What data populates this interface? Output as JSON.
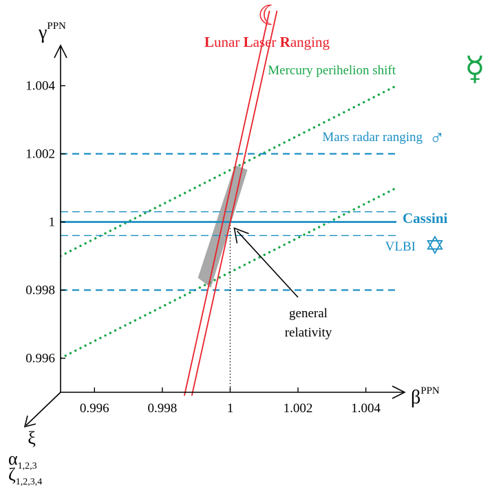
{
  "chart_data": {
    "type": "line",
    "title": "",
    "xlabel": "β",
    "xlabel_sup": "PPN",
    "ylabel": "γ",
    "ylabel_sup": "PPN",
    "zlabel_lines": [
      {
        "base": "ξ",
        "sub": ""
      },
      {
        "base": "α",
        "sub": "1,2,3"
      },
      {
        "base": "ζ",
        "sub": "1,2,3,4"
      }
    ],
    "xlim": [
      0.995,
      1.0049
    ],
    "ylim": [
      0.995,
      1.0049
    ],
    "x_ticks": [
      0.996,
      0.998,
      1,
      1.002,
      1.004
    ],
    "x_tick_labels": [
      "0.996",
      "0.998",
      "1",
      "1.002",
      "1.004"
    ],
    "y_ticks": [
      0.996,
      0.998,
      1,
      1.002,
      1.004
    ],
    "y_tick_labels": [
      "0.996",
      "0.998",
      "1",
      "1.002",
      "1.004"
    ],
    "grid": false,
    "colors": {
      "llr": "#e8202a",
      "mercury": "#1aa64a",
      "radar": "#1b8fc3",
      "gr_region": "#9a9a9a",
      "axes": "#000000"
    },
    "constraints": [
      {
        "label_parts": [
          {
            "text": "L",
            "bold": true
          },
          {
            "text": "unar ",
            "bold": false
          },
          {
            "text": "L",
            "bold": true
          },
          {
            "text": "aser ",
            "bold": false
          },
          {
            "text": "R",
            "bold": true
          },
          {
            "text": "anging",
            "bold": false
          }
        ],
        "style": "solid-double",
        "color_key": "llr",
        "symbol": "☾",
        "lines": [
          {
            "x": [
              0.99865,
              1.00116
            ],
            "y": [
              0.9949,
              1.0062
            ]
          },
          {
            "x": [
              0.99887,
              1.00138
            ],
            "y": [
              0.9949,
              1.0062
            ]
          }
        ]
      },
      {
        "label": "Mercury perihelion shift",
        "style": "dotted",
        "color_key": "mercury",
        "symbol": "☿",
        "lines": [
          {
            "x": [
              0.995,
              1.0049
            ],
            "y": [
              0.999,
              1.004
            ]
          },
          {
            "x": [
              0.995,
              1.0049
            ],
            "y": [
              0.996,
              1.001
            ]
          }
        ]
      },
      {
        "label": "Mars radar ranging",
        "style": "dashed",
        "color_key": "radar",
        "symbol": "♂",
        "lines": [
          {
            "x": [
              0.995,
              1.0049
            ],
            "y": [
              1.002,
              1.002
            ]
          },
          {
            "x": [
              0.995,
              1.0049
            ],
            "y": [
              0.998,
              0.998
            ]
          }
        ]
      },
      {
        "label": "Cassini",
        "bold": true,
        "style": "solid",
        "color_key": "radar",
        "symbol": "",
        "lines": [
          {
            "x": [
              0.995,
              1.0049
            ],
            "y": [
              1.0,
              1.0
            ]
          }
        ]
      },
      {
        "label": "VLBI",
        "style": "thin-dashed",
        "color_key": "radar",
        "symbol": "✡",
        "lines": [
          {
            "x": [
              0.995,
              1.0049
            ],
            "y": [
              1.0003,
              1.0003
            ]
          },
          {
            "x": [
              0.995,
              1.0049
            ],
            "y": [
              0.9996,
              0.9996
            ]
          }
        ]
      }
    ],
    "allowed_region": {
      "polygon": [
        [
          0.99905,
          0.99836
        ],
        [
          0.99943,
          0.99807
        ],
        [
          1.00051,
          1.00153
        ],
        [
          1.00014,
          1.00167
        ]
      ]
    },
    "general_relativity": {
      "point": [
        1,
        1
      ],
      "annotation_lines": [
        "general",
        "relativity"
      ]
    }
  }
}
